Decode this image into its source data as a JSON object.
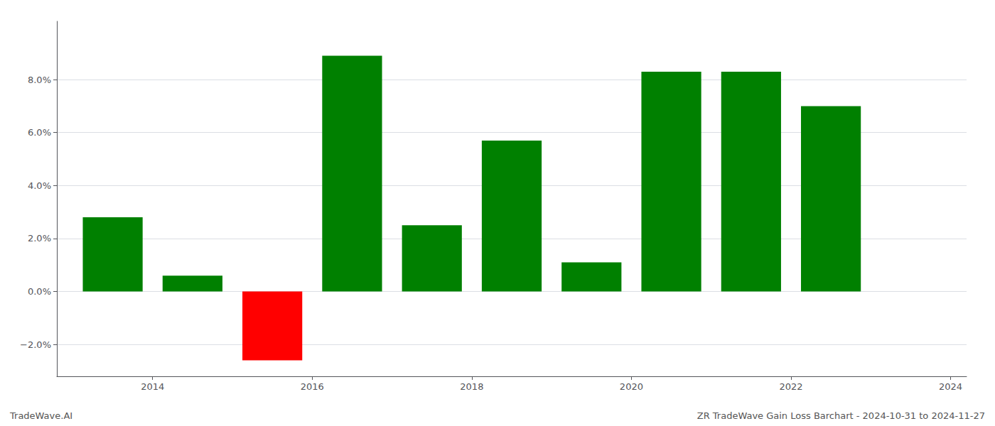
{
  "chart_data": {
    "type": "bar",
    "x": [
      2013.5,
      2014.5,
      2015.5,
      2016.5,
      2017.5,
      2018.5,
      2019.5,
      2020.5,
      2021.5,
      2022.5
    ],
    "values": [
      0.028,
      0.006,
      -0.026,
      0.089,
      0.025,
      0.057,
      0.011,
      0.083,
      0.083,
      0.07
    ],
    "colors": [
      "#008000",
      "#008000",
      "#ff0000",
      "#008000",
      "#008000",
      "#008000",
      "#008000",
      "#008000",
      "#008000",
      "#008000"
    ],
    "xlim": [
      2012.8,
      2024.2
    ],
    "xticks": [
      2014,
      2016,
      2018,
      2020,
      2022,
      2024
    ],
    "ylim": [
      -0.032,
      0.102
    ],
    "yticks": [
      {
        "value": -0.02,
        "label": "−2.0%"
      },
      {
        "value": 0.0,
        "label": "0.0%"
      },
      {
        "value": 0.02,
        "label": "2.0%"
      },
      {
        "value": 0.04,
        "label": "4.0%"
      },
      {
        "value": 0.06,
        "label": "6.0%"
      },
      {
        "value": 0.08,
        "label": "8.0%"
      }
    ],
    "grid": true,
    "annotations": [
      "TradeWave.AI",
      "ZR TradeWave Gain Loss Barchart - 2024-10-31 to 2024-11-27"
    ]
  }
}
